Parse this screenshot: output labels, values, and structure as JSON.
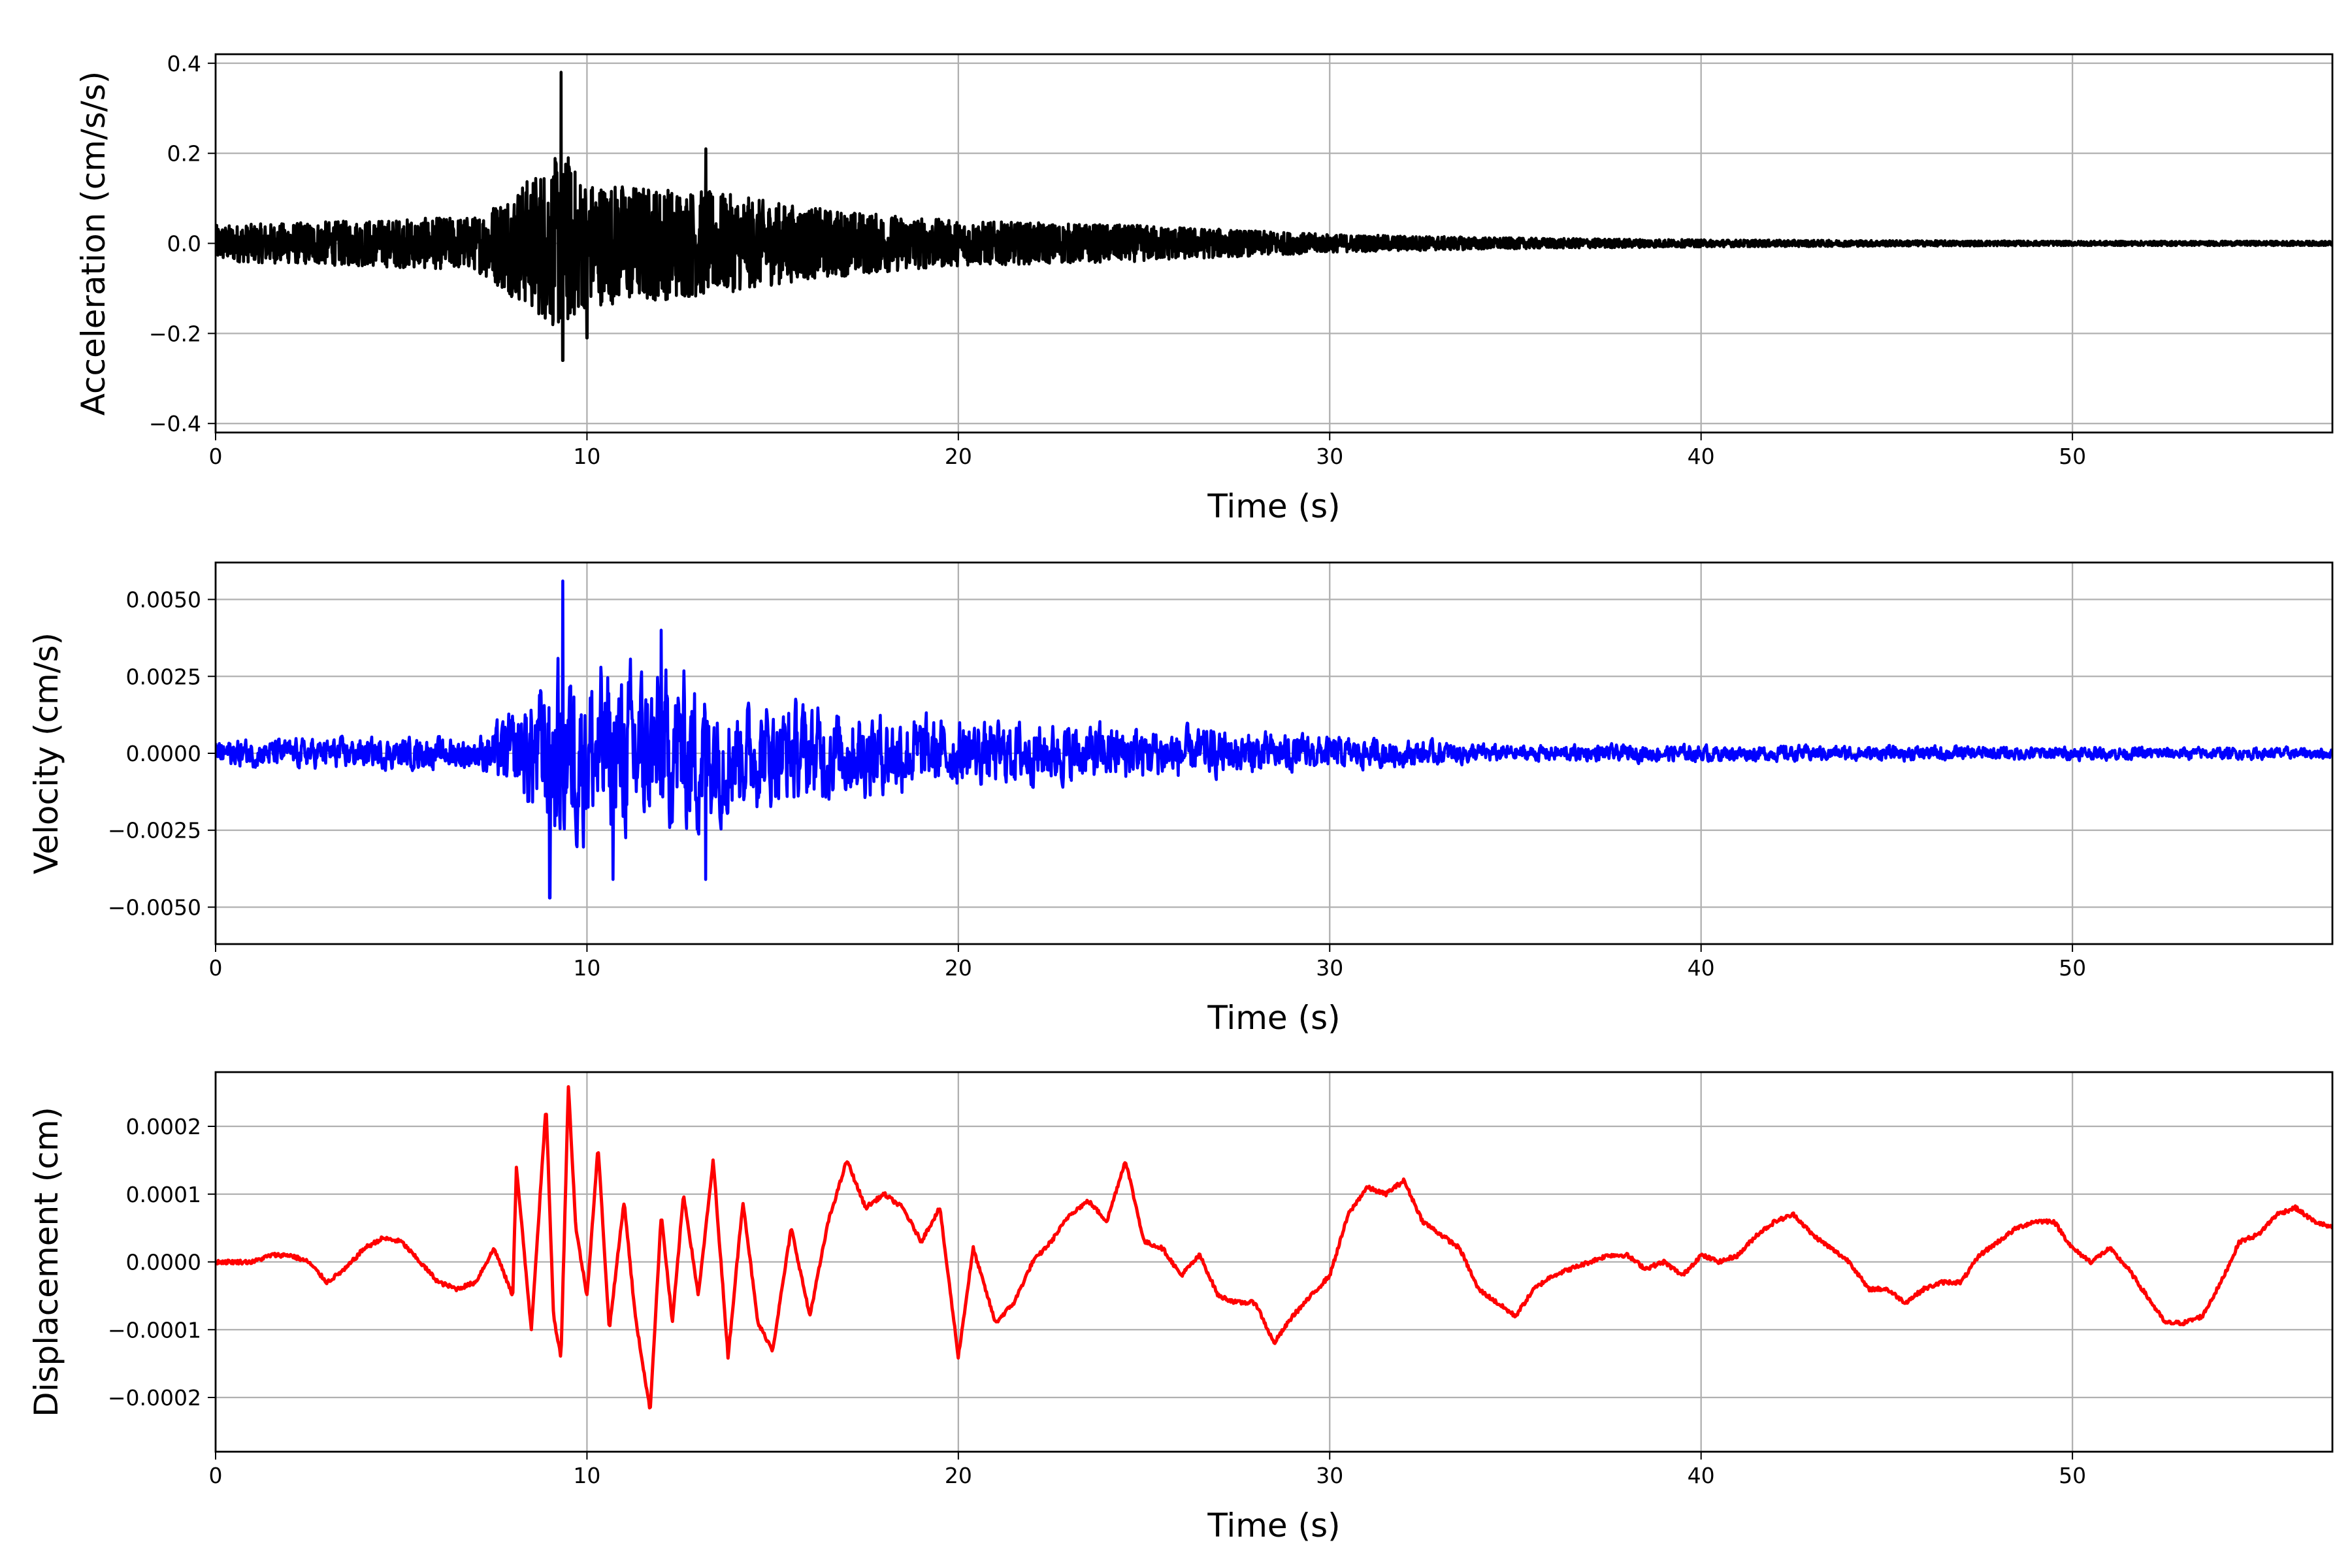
{
  "chart_data": [
    {
      "type": "line",
      "title": "",
      "xlabel": "Time (s)",
      "ylabel": "Acceleration (cm/s/s)",
      "color": "#000000",
      "xlim": [
        0,
        57
      ],
      "ylim": [
        -0.42,
        0.42
      ],
      "xticks": [
        0,
        10,
        20,
        30,
        40,
        50
      ],
      "yticks": [
        -0.4,
        -0.2,
        0.0,
        0.2,
        0.4
      ],
      "ytick_labels": [
        "−0.4",
        "−0.2",
        "0.0",
        "0.2",
        "0.4"
      ],
      "grid": true,
      "envelope": {
        "t": [
          0,
          7,
          8.5,
          9.3,
          10,
          13,
          16,
          20,
          25,
          30,
          35,
          40,
          50,
          57
        ],
        "amp": [
          0.04,
          0.06,
          0.15,
          0.2,
          0.14,
          0.12,
          0.08,
          0.05,
          0.04,
          0.02,
          0.012,
          0.008,
          0.005,
          0.005
        ]
      },
      "peaks": [
        {
          "t": 9.3,
          "v": 0.38
        },
        {
          "t": 9.35,
          "v": -0.26
        },
        {
          "t": 13.2,
          "v": 0.21
        },
        {
          "t": 10.0,
          "v": -0.21
        },
        {
          "t": 9.5,
          "v": 0.19
        }
      ]
    },
    {
      "type": "line",
      "title": "",
      "xlabel": "Time (s)",
      "ylabel": "Velocity (cm/s)",
      "color": "#0000ff",
      "xlim": [
        0,
        57
      ],
      "ylim": [
        -0.0062,
        0.0062
      ],
      "xticks": [
        0,
        10,
        20,
        30,
        40,
        50
      ],
      "yticks": [
        -0.005,
        -0.0025,
        0.0,
        0.0025,
        0.005
      ],
      "ytick_labels": [
        "−0.0050",
        "−0.0025",
        "0.0000",
        "0.0025",
        "0.0050"
      ],
      "grid": true,
      "envelope": {
        "t": [
          0,
          7,
          8,
          9.3,
          10,
          13,
          14,
          16,
          20,
          25,
          30,
          35,
          40,
          57
        ],
        "amp": [
          0.0005,
          0.0006,
          0.0015,
          0.0035,
          0.0032,
          0.003,
          0.002,
          0.0018,
          0.0012,
          0.001,
          0.0006,
          0.0003,
          0.0003,
          0.0002
        ]
      },
      "peaks": [
        {
          "t": 9.35,
          "v": 0.0056
        },
        {
          "t": 9.0,
          "v": -0.0047
        },
        {
          "t": 12.0,
          "v": 0.004
        },
        {
          "t": 13.2,
          "v": -0.0041
        },
        {
          "t": 10.7,
          "v": -0.0041
        }
      ]
    },
    {
      "type": "line",
      "title": "",
      "xlabel": "Time (s)",
      "ylabel": "Displacement (cm)",
      "color": "#ff0000",
      "xlim": [
        0,
        57
      ],
      "ylim": [
        -0.00028,
        0.00028
      ],
      "xticks": [
        0,
        10,
        20,
        30,
        40,
        50
      ],
      "yticks": [
        -0.0002,
        -0.0001,
        0.0,
        0.0001,
        0.0002
      ],
      "ytick_labels": [
        "−0.0002",
        "−0.0001",
        "0.0000",
        "0.0001",
        "0.0002"
      ],
      "grid": true,
      "value_scale": 0.0001,
      "t": [
        0,
        0.5,
        1,
        1.5,
        2,
        2.5,
        3,
        3.5,
        4,
        4.5,
        5,
        5.5,
        6,
        6.5,
        7,
        7.5,
        8,
        8.1,
        8.5,
        8.9,
        9.1,
        9.3,
        9.5,
        9.7,
        10,
        10.3,
        10.6,
        11,
        11.3,
        11.7,
        12,
        12.3,
        12.6,
        13,
        13.4,
        13.8,
        14.2,
        14.6,
        15,
        15.5,
        16,
        16.5,
        17,
        17.5,
        18,
        18.5,
        19,
        19.5,
        20,
        20.4,
        21,
        21.5,
        22,
        22.5,
        23,
        23.5,
        24,
        24.5,
        25,
        25.5,
        26,
        26.5,
        27,
        27.5,
        28,
        28.5,
        29,
        29.5,
        30,
        30.5,
        31,
        31.5,
        32,
        32.5,
        33,
        33.5,
        34,
        34.5,
        35,
        35.5,
        36,
        36.5,
        37,
        37.5,
        38,
        38.5,
        39,
        39.5,
        40,
        40.5,
        41,
        41.5,
        42,
        42.5,
        43,
        43.5,
        44,
        44.5,
        45,
        45.5,
        46,
        46.5,
        47,
        47.5,
        48,
        48.5,
        49,
        49.5,
        50,
        50.5,
        51,
        51.5,
        52,
        52.5,
        53,
        53.5,
        54,
        54.5,
        55,
        55.5,
        56,
        56.5,
        57
      ],
      "values": [
        0,
        0,
        0,
        0.1,
        0.1,
        0,
        -0.3,
        -0.1,
        0.2,
        0.35,
        0.3,
        0,
        -0.3,
        -0.4,
        -0.3,
        0.2,
        -0.5,
        1.4,
        -1.0,
        2.3,
        -0.8,
        -1.4,
        2.6,
        0.5,
        -0.5,
        1.7,
        -1.0,
        0.9,
        -0.8,
        -2.2,
        0.7,
        -0.9,
        1.0,
        -0.5,
        1.5,
        -1.4,
        0.9,
        -0.9,
        -1.3,
        0.5,
        -0.8,
        0.6,
        1.5,
        0.8,
        1.0,
        0.8,
        0.3,
        0.8,
        -1.4,
        0.2,
        -0.9,
        -0.6,
        0,
        0.3,
        0.7,
        0.9,
        0.6,
        1.5,
        0.3,
        0.2,
        -0.2,
        0.1,
        -0.5,
        -0.6,
        -0.6,
        -1.2,
        -0.8,
        -0.5,
        -0.2,
        0.7,
        1.1,
        1.0,
        1.2,
        0.6,
        0.4,
        0.2,
        -0.4,
        -0.6,
        -0.8,
        -0.4,
        -0.2,
        -0.1,
        0,
        0.1,
        0.1,
        -0.1,
        0,
        -0.2,
        0.1,
        0,
        0.1,
        0.4,
        0.6,
        0.7,
        0.4,
        0.2,
        0,
        -0.4,
        -0.4,
        -0.6,
        -0.4,
        -0.3,
        -0.3,
        0.1,
        0.3,
        0.5,
        0.6,
        0.6,
        0.2,
        0,
        0.2,
        -0.1,
        -0.5,
        -0.9,
        -0.9,
        -0.8,
        -0.3,
        0.3,
        0.4,
        0.7,
        0.8,
        0.6,
        0.5
      ]
    }
  ]
}
